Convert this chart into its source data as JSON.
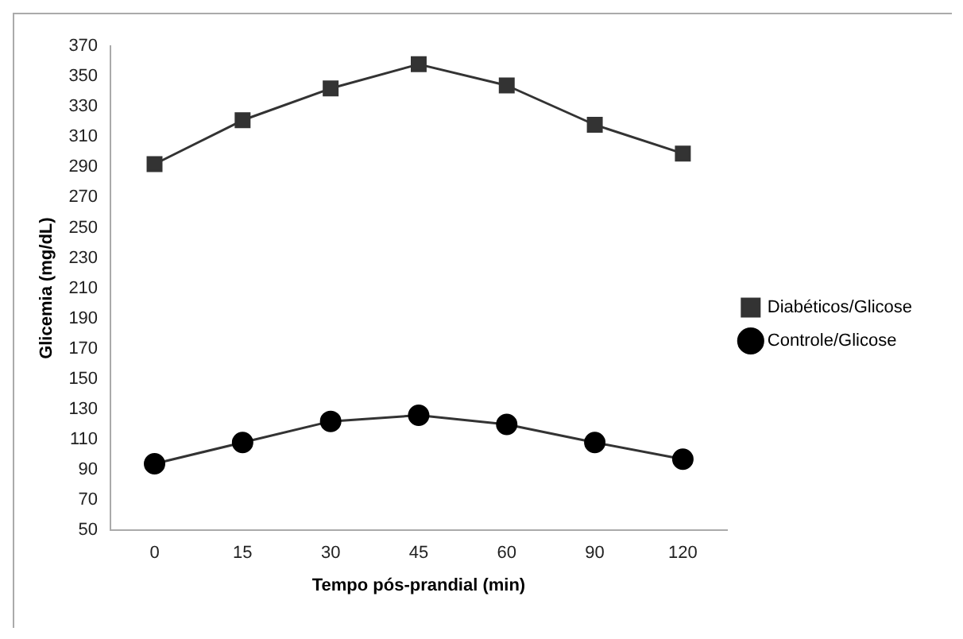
{
  "chart_data": {
    "type": "line",
    "xlabel": "Tempo pós-prandial (min)",
    "ylabel": "Glicemia (mg/dL)",
    "categories": [
      "0",
      "15",
      "30",
      "45",
      "60",
      "90",
      "120"
    ],
    "series": [
      {
        "name": "Diabéticos/Glicose",
        "color": "#333333",
        "marker": "square",
        "values": [
          292,
          321,
          342,
          358,
          344,
          318,
          299
        ]
      },
      {
        "name": "Controle/Glicose",
        "color": "#000000",
        "marker": "circle",
        "values": [
          94,
          108,
          122,
          126,
          120,
          108,
          97
        ]
      }
    ],
    "ylim": [
      50,
      370
    ],
    "yticks": [
      50,
      70,
      90,
      110,
      130,
      150,
      170,
      190,
      210,
      230,
      250,
      270,
      290,
      310,
      330,
      350,
      370
    ],
    "grid": false,
    "legend": "right"
  }
}
